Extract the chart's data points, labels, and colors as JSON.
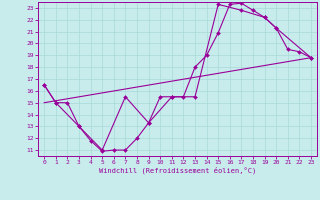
{
  "xlabel": "Windchill (Refroidissement éolien,°C)",
  "bg_color": "#c8ecec",
  "grid_color": "#a8d8d8",
  "line_color": "#990099",
  "xlim": [
    -0.5,
    23.5
  ],
  "ylim": [
    10.5,
    23.5
  ],
  "xticks": [
    0,
    1,
    2,
    3,
    4,
    5,
    6,
    7,
    8,
    9,
    10,
    11,
    12,
    13,
    14,
    15,
    16,
    17,
    18,
    19,
    20,
    21,
    22,
    23
  ],
  "yticks": [
    11,
    12,
    13,
    14,
    15,
    16,
    17,
    18,
    19,
    20,
    21,
    22,
    23
  ],
  "curve1_x": [
    0,
    1,
    2,
    3,
    4,
    5,
    6,
    7,
    8,
    9,
    10,
    11,
    12,
    13,
    14,
    15,
    16,
    17,
    18,
    19,
    20,
    21,
    22,
    23
  ],
  "curve1_y": [
    16.5,
    15.0,
    15.0,
    13.0,
    11.8,
    10.9,
    11.0,
    11.0,
    12.0,
    13.3,
    15.5,
    15.5,
    15.5,
    18.0,
    19.0,
    20.9,
    23.3,
    23.4,
    22.8,
    22.2,
    21.3,
    19.5,
    19.3,
    18.8
  ],
  "curve2_x": [
    0,
    1,
    3,
    5,
    7,
    9,
    11,
    13,
    15,
    17,
    19,
    20,
    23
  ],
  "curve2_y": [
    16.5,
    15.0,
    13.0,
    11.0,
    15.5,
    13.3,
    15.5,
    15.5,
    23.3,
    22.8,
    22.2,
    21.3,
    18.8
  ],
  "curve3_x": [
    0,
    23
  ],
  "curve3_y": [
    15.0,
    18.8
  ],
  "marker_size": 2.0,
  "line_width": 0.8
}
